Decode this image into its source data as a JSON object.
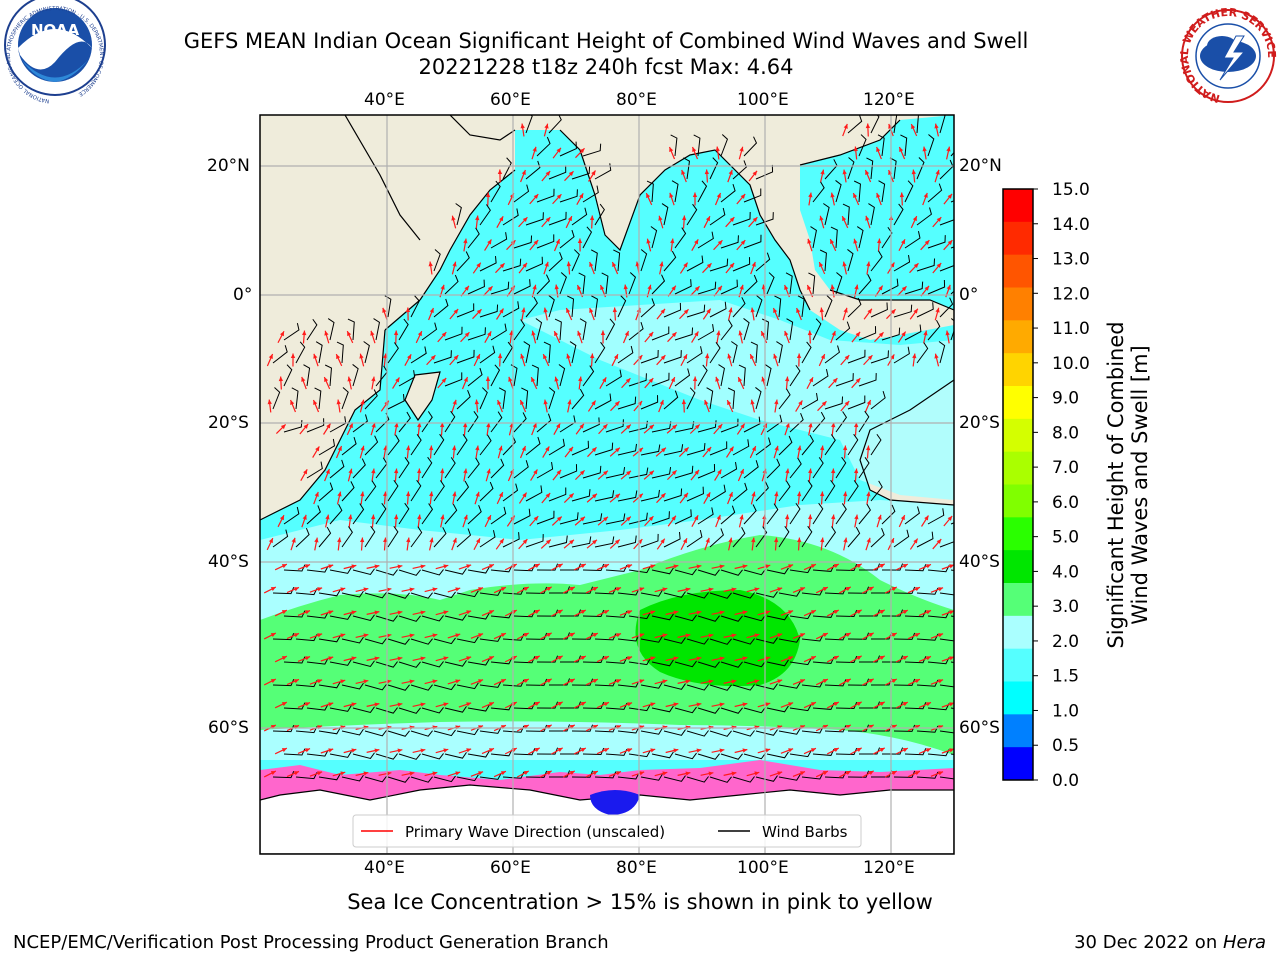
{
  "header": {
    "title_line1": "GEFS MEAN Indian Ocean Significant Height of Combined Wind Waves and Swell",
    "title_line2": "20221228 t18z 240h fcst   Max: 4.64"
  },
  "logos": {
    "noara_text": "NOAA",
    "noaa_ring_text": "NATIONAL OCEANIC AND ATMOSPHERIC ADMINISTRATION · U.S. DEPARTMENT OF COMMERCE",
    "nws_ring_text": "NATIONAL WEATHER SERVICE"
  },
  "map": {
    "lon_ticks": [
      "40°E",
      "60°E",
      "80°E",
      "100°E",
      "120°E"
    ],
    "lat_ticks": [
      "20°N",
      "0°",
      "20°S",
      "40°S",
      "60°S"
    ],
    "legend": {
      "wave_label": "Primary Wave Direction (unscaled)",
      "barb_label": "Wind Barbs",
      "wave_color": "#ff0000",
      "barb_color": "#000000"
    }
  },
  "colorbar": {
    "label": "Significant Height of Combined Wind Waves and Swell [m]",
    "label_line1": "Significant Height of Combined",
    "label_line2": "Wind Waves and Swell [m]",
    "tick_labels": [
      "15.0",
      "14.0",
      "13.0",
      "12.0",
      "11.0",
      "10.0",
      "9.0",
      "8.0",
      "7.0",
      "6.0",
      "5.0",
      "4.0",
      "3.0",
      "2.0",
      "1.5",
      "1.0",
      "0.5",
      "0.0"
    ],
    "colors_top_to_bottom": [
      "#ff0000",
      "#ff2a00",
      "#ff5500",
      "#ff8000",
      "#ffaa00",
      "#ffd400",
      "#ffff00",
      "#d4ff00",
      "#aaff00",
      "#80ff00",
      "#2aff00",
      "#00e600",
      "#55ff77",
      "#aaffff",
      "#55ffff",
      "#00ffff",
      "#0080ff",
      "#0000ff"
    ]
  },
  "land_color": "#efecdb",
  "footer": {
    "ice_note": "Sea Ice Concentration > 15% is shown in pink to yellow",
    "left": "NCEP/EMC/Verification Post Processing Product Generation Branch",
    "right_prefix": "30 Dec 2022 on ",
    "right_italic": "Hera"
  }
}
